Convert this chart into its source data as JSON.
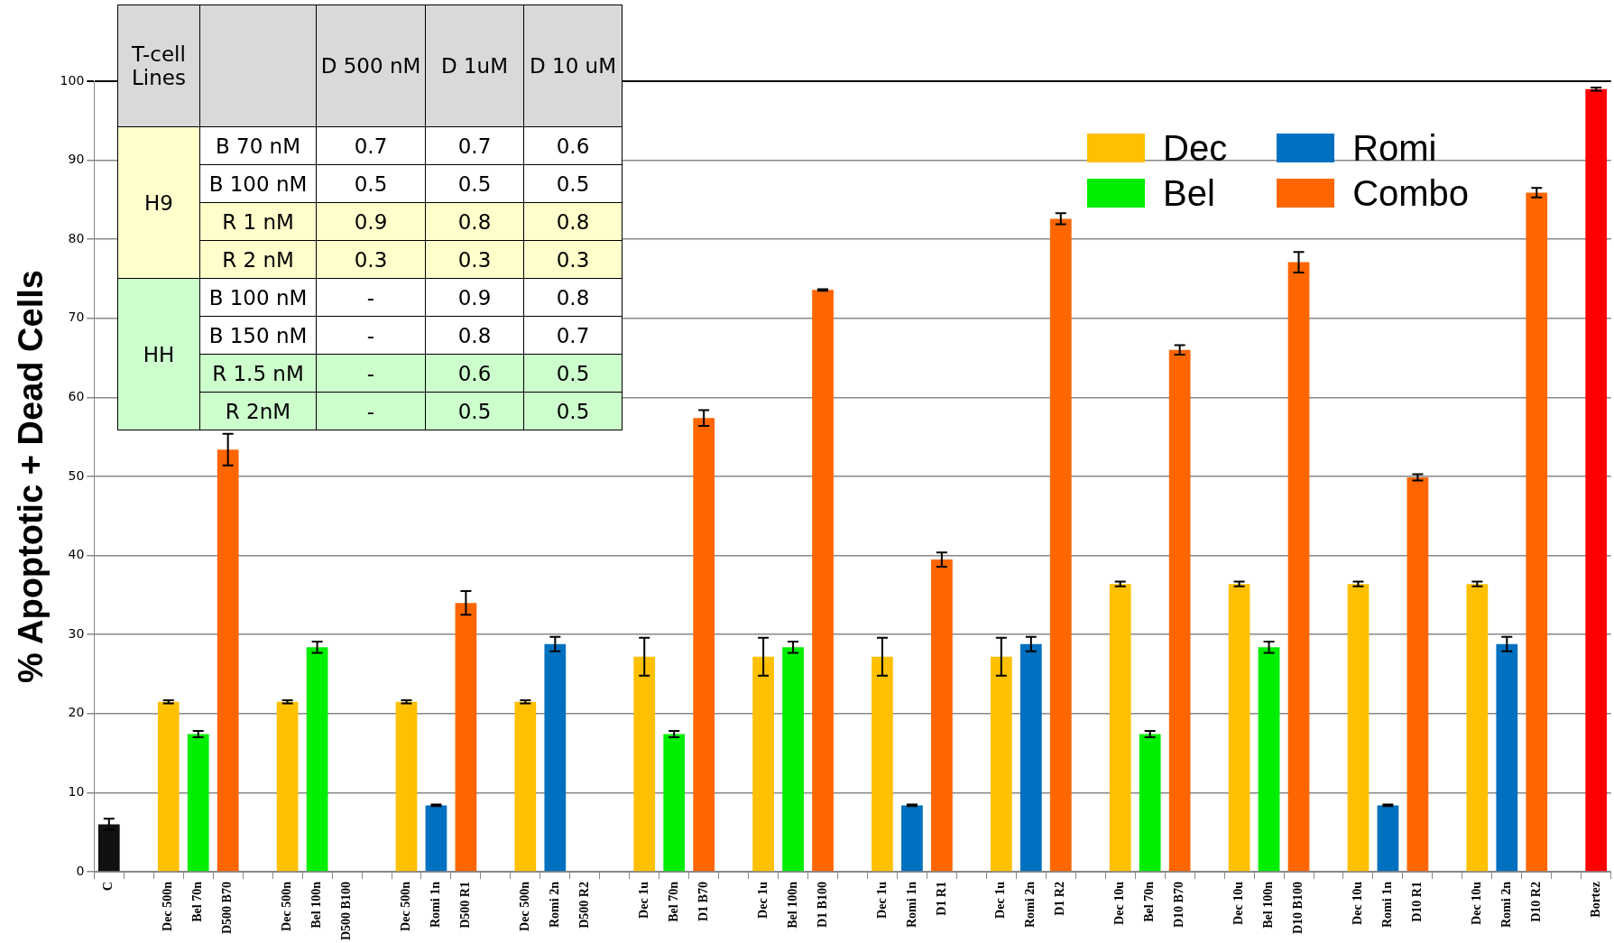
{
  "chart_data": [
    {
      "type": "bar",
      "ylabel": "% Apoptotic + Dead Cells",
      "categories": [
        "C",
        null,
        "Dec 500n",
        "Bel 70n",
        "D500 B70",
        null,
        "Dec 500n",
        "Bel 100n",
        "D500 B100",
        null,
        "Dec 500n",
        "Romi 1n",
        "D500 R1",
        null,
        "Dec 500n",
        "Romi 2n",
        "D500 R2",
        null,
        "Dec 1u",
        "Bel 70n",
        "D1 B70",
        null,
        "Dec 1u",
        "Bel 100n",
        "D1 B100",
        null,
        "Dec 1u",
        "Romi 1n",
        "D1 R1",
        null,
        "Dec 1u",
        "Romi 2n",
        "D1 R2",
        null,
        "Dec 10u",
        "Bel 70n",
        "D10 B70",
        null,
        "Dec 10u",
        "Bel 100n",
        "D10 B100",
        null,
        "Dec 10u",
        "Romi 1n",
        "D10 R1",
        null,
        "Dec 10u",
        "Romi 2n",
        "D10 R2",
        null,
        "Bortez"
      ],
      "series": [
        {
          "color": "#111111",
          "values": [
            6.0,
            null,
            null,
            null,
            null,
            null,
            null,
            null,
            null,
            null,
            null,
            null,
            null,
            null,
            null,
            null,
            null,
            null,
            null,
            null,
            null,
            null,
            null,
            null,
            null,
            null,
            null,
            null,
            null,
            null,
            null,
            null,
            null,
            null,
            null,
            null,
            null,
            null,
            null,
            null,
            null,
            null,
            null,
            null,
            null,
            null,
            null,
            null,
            null,
            null,
            null
          ],
          "errors": [
            0.7,
            null,
            null,
            null,
            null,
            null,
            null,
            null,
            null,
            null,
            null,
            null,
            null,
            null,
            null,
            null,
            null,
            null,
            null,
            null,
            null,
            null,
            null,
            null,
            null,
            null,
            null,
            null,
            null,
            null,
            null,
            null,
            null,
            null,
            null,
            null,
            null,
            null,
            null,
            null,
            null,
            null,
            null,
            null,
            null,
            null,
            null,
            null,
            null,
            null,
            null
          ]
        },
        {
          "name": "Dec",
          "color": "#ffc000",
          "values": [
            null,
            null,
            21.5,
            null,
            null,
            null,
            21.5,
            null,
            null,
            null,
            21.5,
            null,
            null,
            null,
            21.5,
            null,
            null,
            null,
            27.2,
            null,
            null,
            null,
            27.2,
            null,
            null,
            null,
            27.2,
            null,
            null,
            null,
            27.2,
            null,
            null,
            null,
            36.4,
            null,
            null,
            null,
            36.4,
            null,
            null,
            null,
            36.4,
            null,
            null,
            null,
            36.4,
            null,
            null,
            null,
            null
          ],
          "errors": [
            null,
            null,
            0.2,
            null,
            null,
            null,
            0.2,
            null,
            null,
            null,
            0.2,
            null,
            null,
            null,
            0.2,
            null,
            null,
            null,
            2.4,
            null,
            null,
            null,
            2.4,
            null,
            null,
            null,
            2.4,
            null,
            null,
            null,
            2.4,
            null,
            null,
            null,
            0.3,
            null,
            null,
            null,
            0.3,
            null,
            null,
            null,
            0.3,
            null,
            null,
            null,
            0.3,
            null,
            null,
            null,
            null
          ]
        },
        {
          "name": "Bel",
          "color": "#00ee00",
          "values": [
            null,
            null,
            null,
            17.4,
            null,
            null,
            null,
            28.4,
            null,
            null,
            null,
            null,
            null,
            null,
            null,
            null,
            null,
            null,
            null,
            17.4,
            null,
            null,
            null,
            28.4,
            null,
            null,
            null,
            null,
            null,
            null,
            null,
            null,
            null,
            null,
            null,
            17.4,
            null,
            null,
            null,
            28.4,
            null,
            null,
            null,
            null,
            null,
            null,
            null,
            null,
            null,
            null,
            null
          ],
          "errors": [
            null,
            null,
            null,
            0.4,
            null,
            null,
            null,
            0.7,
            null,
            null,
            null,
            null,
            null,
            null,
            null,
            null,
            null,
            null,
            null,
            0.4,
            null,
            null,
            null,
            0.7,
            null,
            null,
            null,
            null,
            null,
            null,
            null,
            null,
            null,
            null,
            null,
            0.4,
            null,
            null,
            null,
            0.7,
            null,
            null,
            null,
            null,
            null,
            null,
            null,
            null,
            null,
            null,
            null
          ]
        },
        {
          "name": "Romi",
          "color": "#0070c0",
          "values": [
            null,
            null,
            null,
            null,
            null,
            null,
            null,
            null,
            null,
            null,
            null,
            8.4,
            null,
            null,
            null,
            28.8,
            null,
            null,
            null,
            null,
            null,
            null,
            null,
            null,
            null,
            null,
            null,
            8.4,
            null,
            null,
            null,
            28.8,
            null,
            null,
            null,
            null,
            null,
            null,
            null,
            null,
            null,
            null,
            null,
            8.4,
            null,
            null,
            null,
            28.8,
            null,
            null,
            null
          ],
          "errors": [
            null,
            null,
            null,
            null,
            null,
            null,
            null,
            null,
            null,
            null,
            null,
            0.1,
            null,
            null,
            null,
            0.9,
            null,
            null,
            null,
            null,
            null,
            null,
            null,
            null,
            null,
            null,
            null,
            0.1,
            null,
            null,
            null,
            0.9,
            null,
            null,
            null,
            null,
            null,
            null,
            null,
            null,
            null,
            null,
            null,
            0.1,
            null,
            null,
            null,
            0.9,
            null,
            null,
            null
          ]
        },
        {
          "name": "Combo",
          "color": "#ff6600",
          "values": [
            null,
            null,
            null,
            null,
            53.4,
            null,
            null,
            null,
            null,
            null,
            null,
            null,
            34.0,
            null,
            null,
            null,
            null,
            null,
            null,
            null,
            57.4,
            null,
            null,
            null,
            73.6,
            null,
            null,
            null,
            39.5,
            null,
            null,
            null,
            82.6,
            null,
            null,
            null,
            66.0,
            null,
            null,
            null,
            77.1,
            null,
            null,
            null,
            49.9,
            null,
            null,
            null,
            85.9,
            null,
            null
          ],
          "errors": [
            null,
            null,
            null,
            null,
            2.0,
            null,
            null,
            null,
            null,
            null,
            null,
            null,
            1.5,
            null,
            null,
            null,
            null,
            null,
            null,
            null,
            1.0,
            null,
            null,
            null,
            0.1,
            null,
            null,
            null,
            0.9,
            null,
            null,
            null,
            0.7,
            null,
            null,
            null,
            0.6,
            null,
            null,
            null,
            1.3,
            null,
            null,
            null,
            0.4,
            null,
            null,
            null,
            0.6,
            null,
            null
          ]
        },
        {
          "color": "#ff0000",
          "values": [
            null,
            null,
            null,
            null,
            null,
            null,
            null,
            null,
            null,
            null,
            null,
            null,
            null,
            null,
            null,
            null,
            null,
            null,
            null,
            null,
            null,
            null,
            null,
            null,
            null,
            null,
            null,
            null,
            null,
            null,
            null,
            null,
            null,
            null,
            null,
            null,
            null,
            null,
            null,
            null,
            null,
            null,
            null,
            null,
            null,
            null,
            null,
            null,
            null,
            null,
            99.0
          ],
          "errors": [
            null,
            null,
            null,
            null,
            null,
            null,
            null,
            null,
            null,
            null,
            null,
            null,
            null,
            null,
            null,
            null,
            null,
            null,
            null,
            null,
            null,
            null,
            null,
            null,
            null,
            null,
            null,
            null,
            null,
            null,
            null,
            null,
            null,
            null,
            null,
            null,
            null,
            null,
            null,
            null,
            null,
            null,
            null,
            null,
            null,
            null,
            null,
            null,
            null,
            null,
            0.2
          ]
        }
      ],
      "ylim": [
        0,
        100
      ],
      "yticks": [
        0,
        10,
        20,
        30,
        40,
        50,
        60,
        70,
        80,
        90,
        100
      ],
      "grid": "y",
      "legend": "top right"
    },
    {
      "type": "heatmap",
      "ylabel": "T-cell Lines",
      "categories": [
        "D 500 nM",
        "D 1uM",
        "D 10 uM"
      ],
      "y_categories": [
        "B 70 nM",
        "B 100 nM",
        "R 1 nM",
        "R 2 nM",
        "B 100 nM",
        "B 150 nM",
        "R 1.5 nM",
        "R 2nM"
      ],
      "cells": [
        [
          0.7,
          0.7,
          0.6
        ],
        [
          0.5,
          0.5,
          0.5
        ],
        [
          0.9,
          0.8,
          0.8
        ],
        [
          0.3,
          0.3,
          0.3
        ],
        [
          null,
          0.9,
          0.8
        ],
        [
          null,
          0.8,
          0.7
        ],
        [
          null,
          0.6,
          0.5
        ],
        [
          null,
          0.5,
          0.5
        ]
      ],
      "cell_labels": [
        [
          "0.7",
          "0.7",
          "0.6"
        ],
        [
          "0.5",
          "0.5",
          "0.5"
        ],
        [
          "0.9",
          "0.8",
          "0.8"
        ],
        [
          "0.3",
          "0.3",
          "0.3"
        ],
        [
          "-",
          "0.9",
          "0.8"
        ],
        [
          "-",
          "0.8",
          "0.7"
        ],
        [
          "-",
          "0.6",
          "0.5"
        ],
        [
          "-",
          "0.5",
          "0.5"
        ]
      ],
      "annotations": [
        "H9",
        "HH"
      ]
    }
  ]
}
